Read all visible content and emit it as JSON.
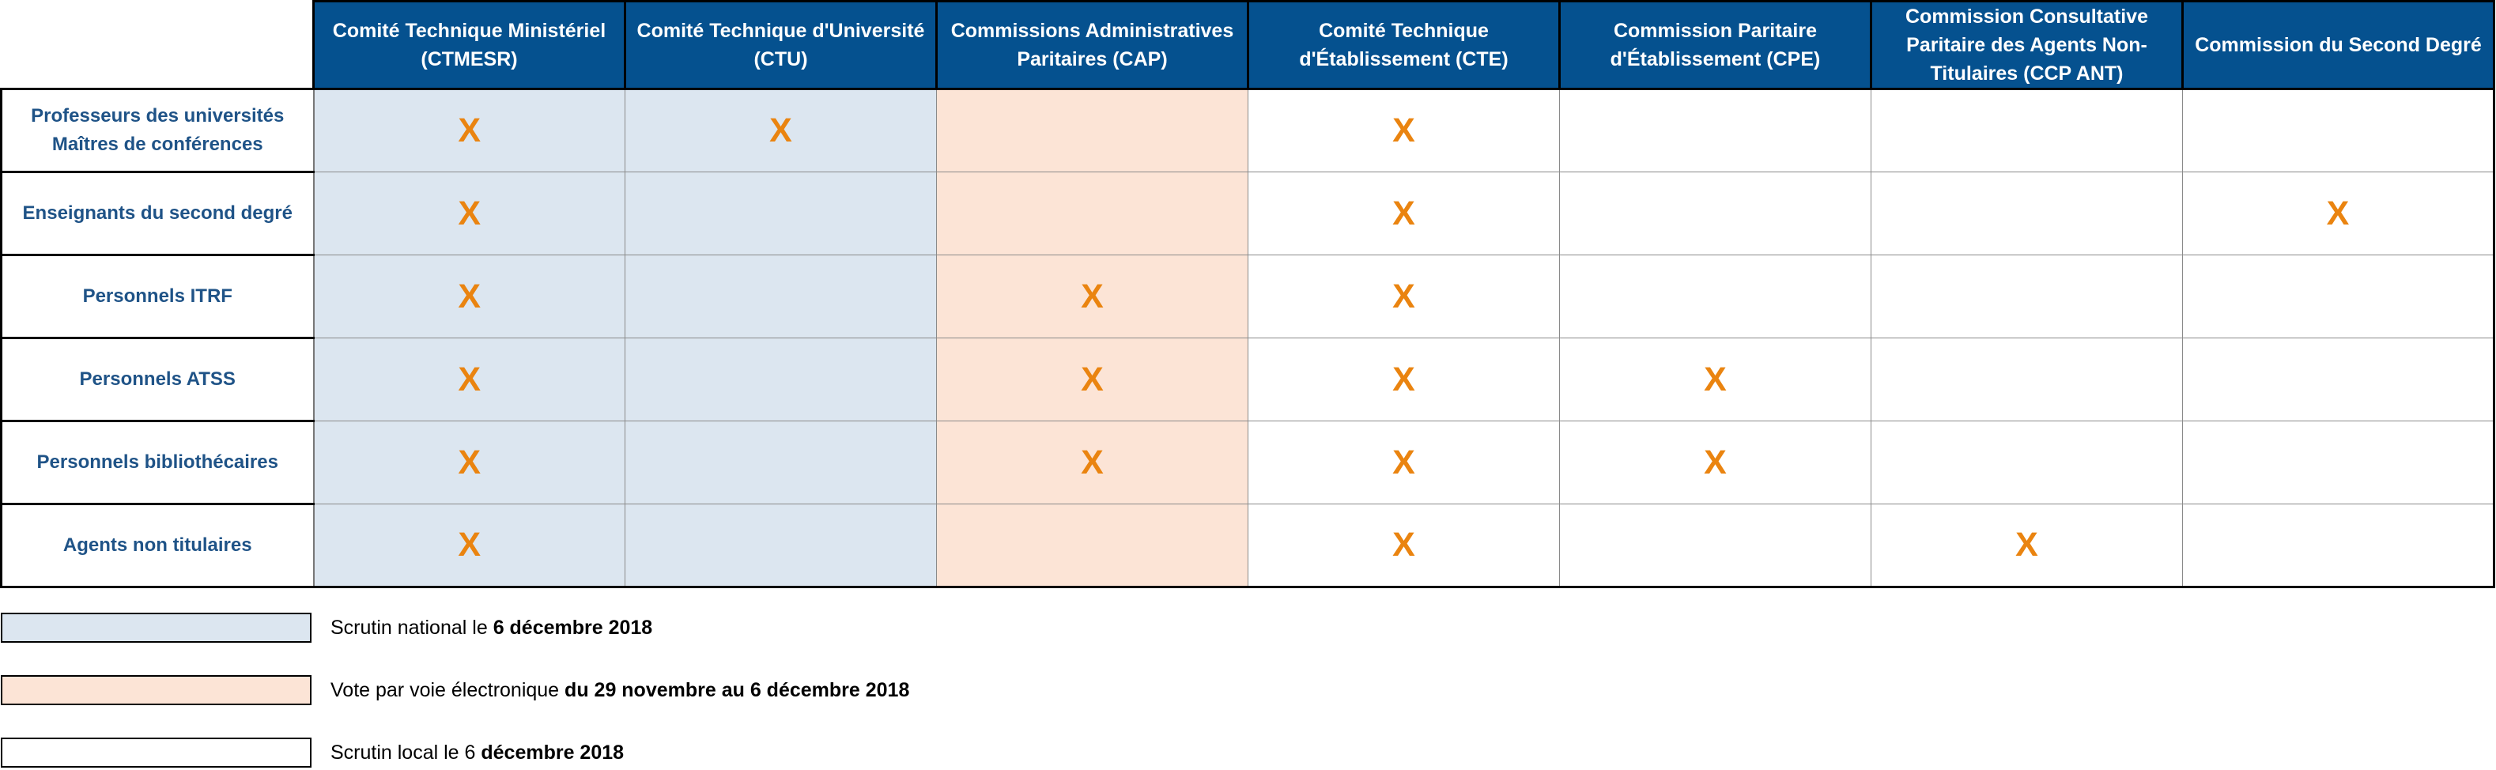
{
  "colors": {
    "header_bg": "#05518f",
    "national": "#dce6f0",
    "electronic": "#fce4d6",
    "local": "#ffffff",
    "mark": "#ea8410",
    "rowhead_text": "#1f5387"
  },
  "columns": [
    "Comité Technique Ministériel (CTMESR)",
    "Comité Technique d'Université (CTU)",
    "Commissions Administratives Paritaires (CAP)",
    "Comité Technique d'Établissement (CTE)",
    "Commission Paritaire d'Établissement (CPE)",
    "Commission Consultative Paritaire des Agents Non-Titulaires (CCP ANT)",
    "Commission du Second Degré"
  ],
  "rows": [
    {
      "label_line1": "Professeurs des universités",
      "label_line2": "Maîtres de conférences",
      "marks": [
        "X",
        "X",
        "",
        "X",
        "",
        "",
        ""
      ]
    },
    {
      "label_line1": "Enseignants du second degré",
      "label_line2": "",
      "marks": [
        "X",
        "",
        "",
        "X",
        "",
        "",
        "X"
      ]
    },
    {
      "label_line1": "Personnels ITRF",
      "label_line2": "",
      "marks": [
        "X",
        "",
        "X",
        "X",
        "",
        "",
        ""
      ]
    },
    {
      "label_line1": "Personnels ATSS",
      "label_line2": "",
      "marks": [
        "X",
        "",
        "X",
        "X",
        "X",
        "",
        ""
      ]
    },
    {
      "label_line1": "Personnels bibliothécaires",
      "label_line2": "",
      "marks": [
        "X",
        "",
        "X",
        "X",
        "X",
        "",
        ""
      ]
    },
    {
      "label_line1": "Agents non titulaires",
      "label_line2": "",
      "marks": [
        "X",
        "",
        "",
        "X",
        "",
        "X",
        ""
      ]
    }
  ],
  "legend": [
    {
      "text": "Scrutin national le ",
      "bold": "6 décembre 2018"
    },
    {
      "text": "Vote par voie électronique ",
      "bold": "du 29 novembre au 6 décembre 2018"
    },
    {
      "text": "Scrutin local le 6 ",
      "bold": "décembre 2018"
    }
  ]
}
